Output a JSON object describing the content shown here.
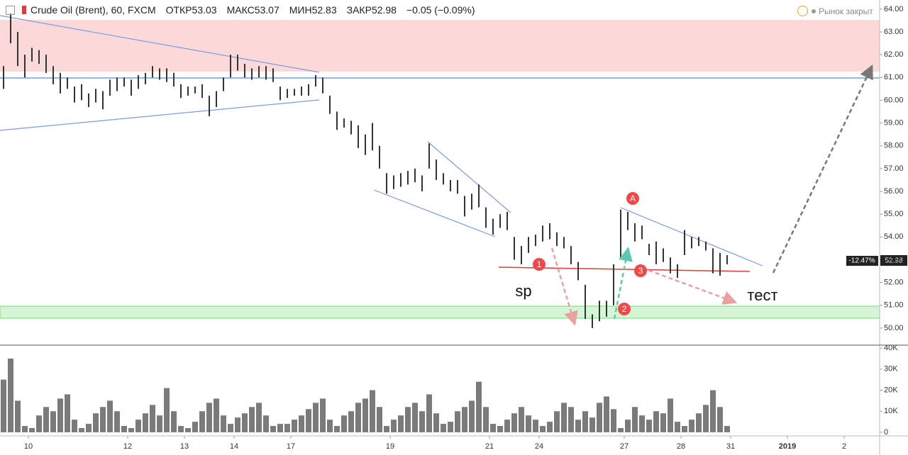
{
  "header": {
    "symbol": "Crude Oil (Brent), 60, FXCM",
    "open_label": "ОТКР",
    "open": "53.03",
    "high_label": "МАКС",
    "high": "53.07",
    "low_label": "МИН",
    "low": "52.83",
    "close_label": "ЗАКР",
    "close": "52.98",
    "change": "−0.05 (−0.09%)",
    "market_status": "Рынок закрыт"
  },
  "price_tag": {
    "percent": "-12.47%",
    "price": "52.98"
  },
  "annotations": {
    "sp": "sp",
    "test": "тест",
    "point1": "1",
    "point2": "2",
    "point3": "3",
    "pointA": "A"
  },
  "chart_data": [
    {
      "type": "hilo",
      "color": "#333333",
      "xlim": [
        0,
        124
      ],
      "ylim": [
        49.25,
        64.4
      ],
      "yticks": [
        {
          "value": 50,
          "label": "50.00"
        },
        {
          "value": 51,
          "label": "51.00"
        },
        {
          "value": 52,
          "label": "52.00"
        },
        {
          "value": 53,
          "label": "53.00"
        },
        {
          "value": 54,
          "label": "54.00"
        },
        {
          "value": 55,
          "label": "55.00"
        },
        {
          "value": 56,
          "label": "56.00"
        },
        {
          "value": 57,
          "label": "57.00"
        },
        {
          "value": 58,
          "label": "58.00"
        },
        {
          "value": 59,
          "label": "59.00"
        },
        {
          "value": 60,
          "label": "60.00"
        },
        {
          "value": 61,
          "label": "61.00"
        },
        {
          "value": 62,
          "label": "62.00"
        },
        {
          "value": 63,
          "label": "63.00"
        },
        {
          "value": 64,
          "label": "64.00"
        }
      ],
      "high": [
        61.5,
        63.8,
        63.0,
        62.0,
        62.3,
        62.2,
        62.0,
        61.5,
        61.2,
        61.0,
        60.6,
        60.7,
        60.3,
        60.5,
        60.4,
        60.9,
        61.0,
        61.0,
        60.9,
        61.1,
        61.2,
        61.5,
        61.4,
        61.4,
        61.2,
        60.7,
        60.6,
        60.6,
        60.7,
        60.2,
        60.4,
        61.0,
        62.0,
        62.0,
        61.6,
        61.4,
        61.5,
        61.5,
        61.4,
        60.6,
        60.5,
        60.5,
        60.6,
        60.7,
        61.1,
        61.0,
        60.2,
        59.5,
        59.2,
        59.1,
        58.9,
        58.5,
        59.0,
        58.0,
        56.8,
        56.7,
        56.8,
        56.9,
        57.0,
        56.7,
        58.1,
        57.4,
        56.8,
        56.5,
        56.5,
        55.8,
        55.9,
        56.3,
        55.3,
        54.8,
        55.0,
        55.1,
        54.0,
        53.6,
        54.0,
        54.1,
        54.5,
        54.6,
        54.2,
        54.0,
        53.6,
        52.9,
        51.9,
        50.6,
        51.2,
        51.2,
        52.8,
        55.2,
        55.1,
        54.6,
        54.5,
        53.7,
        53.8,
        53.5,
        53.1,
        52.8,
        54.3,
        54.0,
        54.0,
        53.8,
        53.5,
        53.3,
        53.2
      ],
      "low": [
        60.5,
        62.5,
        61.5,
        61.0,
        61.7,
        61.6,
        61.2,
        60.7,
        60.3,
        60.5,
        59.9,
        60.0,
        59.7,
        59.9,
        59.6,
        60.2,
        60.4,
        60.6,
        60.2,
        60.5,
        60.7,
        61.0,
        60.9,
        60.8,
        60.6,
        60.1,
        60.2,
        60.3,
        60.1,
        59.3,
        59.7,
        60.4,
        61.0,
        61.3,
        61.0,
        60.9,
        61.0,
        60.9,
        60.8,
        60.0,
        60.1,
        60.2,
        60.2,
        60.2,
        60.6,
        60.3,
        59.4,
        58.7,
        58.8,
        58.5,
        57.9,
        57.6,
        57.8,
        57.0,
        55.9,
        56.1,
        56.2,
        56.3,
        56.4,
        56.0,
        57.0,
        56.5,
        56.3,
        56.0,
        55.9,
        54.9,
        55.2,
        55.3,
        54.4,
        54.1,
        54.4,
        54.3,
        53.0,
        52.8,
        53.3,
        53.6,
        53.8,
        53.9,
        53.6,
        53.5,
        52.8,
        52.1,
        50.4,
        50.0,
        50.3,
        50.5,
        51.0,
        53.0,
        54.3,
        53.8,
        53.9,
        53.2,
        52.8,
        52.9,
        52.4,
        52.2,
        53.2,
        53.5,
        53.6,
        53.4,
        52.4,
        52.3,
        52.8
      ]
    },
    {
      "type": "volume",
      "color": "#7a7a7a",
      "xlim": [
        0,
        124
      ],
      "ylim": [
        -1700,
        40700
      ],
      "yticks": [
        0,
        {
          "value": 10000,
          "label": "10K"
        },
        {
          "value": 20000,
          "label": "20K"
        },
        {
          "value": 30000,
          "label": "30K"
        },
        {
          "value": 40000,
          "label": "40K"
        }
      ],
      "xticks": [
        {
          "value": 4,
          "label": "10"
        },
        {
          "value": 18,
          "label": "12"
        },
        {
          "value": 26,
          "label": "13"
        },
        {
          "value": 33,
          "label": "14"
        },
        {
          "value": 41,
          "label": "17"
        },
        {
          "value": 55,
          "label": "19"
        },
        {
          "value": 69,
          "label": "21"
        },
        {
          "value": 76,
          "label": "24"
        },
        {
          "value": 88,
          "label": "27"
        },
        {
          "value": 96,
          "label": "28"
        },
        {
          "value": 103,
          "label": "31"
        },
        {
          "value": 111,
          "label": "2019"
        },
        {
          "value": 119,
          "label": "2"
        }
      ],
      "values": [
        25000,
        35000,
        15000,
        3000,
        2000,
        8000,
        12000,
        10000,
        16000,
        18000,
        6000,
        2000,
        4000,
        9000,
        12000,
        15000,
        10000,
        3000,
        2000,
        6000,
        9000,
        13000,
        8000,
        21000,
        10000,
        3000,
        2000,
        5000,
        10000,
        14000,
        16000,
        8000,
        4000,
        7000,
        9000,
        12000,
        14000,
        8000,
        3000,
        4000,
        4000,
        6000,
        8000,
        11000,
        14000,
        16000,
        6000,
        3000,
        8000,
        10000,
        14000,
        16000,
        20000,
        12000,
        3000,
        6000,
        8000,
        12000,
        14000,
        10000,
        18000,
        9000,
        4000,
        5000,
        10000,
        12000,
        15000,
        24000,
        12000,
        4000,
        3000,
        6000,
        9000,
        12000,
        8000,
        6000,
        3000,
        5000,
        10000,
        14000,
        12000,
        6000,
        10000,
        7000,
        14000,
        17000,
        11000,
        2000,
        6000,
        12000,
        8000,
        6000,
        10000,
        9000,
        16000,
        5000,
        3000,
        6000,
        9000,
        13000,
        20000,
        12000,
        3000
      ]
    }
  ]
}
